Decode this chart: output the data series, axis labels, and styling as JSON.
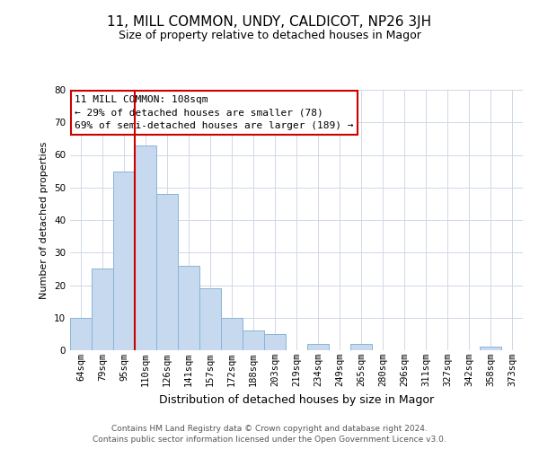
{
  "title": "11, MILL COMMON, UNDY, CALDICOT, NP26 3JH",
  "subtitle": "Size of property relative to detached houses in Magor",
  "xlabel": "Distribution of detached houses by size in Magor",
  "ylabel": "Number of detached properties",
  "categories": [
    "64sqm",
    "79sqm",
    "95sqm",
    "110sqm",
    "126sqm",
    "141sqm",
    "157sqm",
    "172sqm",
    "188sqm",
    "203sqm",
    "219sqm",
    "234sqm",
    "249sqm",
    "265sqm",
    "280sqm",
    "296sqm",
    "311sqm",
    "327sqm",
    "342sqm",
    "358sqm",
    "373sqm"
  ],
  "values": [
    10,
    25,
    55,
    63,
    48,
    26,
    19,
    10,
    6,
    5,
    0,
    2,
    0,
    2,
    0,
    0,
    0,
    0,
    0,
    1,
    0
  ],
  "bar_color": "#c6d9ee",
  "bar_edge_color": "#8ab4d8",
  "vline_color": "#cc0000",
  "vline_x_index": 3,
  "ylim": [
    0,
    80
  ],
  "yticks": [
    0,
    10,
    20,
    30,
    40,
    50,
    60,
    70,
    80
  ],
  "annotation_title": "11 MILL COMMON: 108sqm",
  "annotation_line2": "← 29% of detached houses are smaller (78)",
  "annotation_line3": "69% of semi-detached houses are larger (189) →",
  "annotation_box_edge": "#cc0000",
  "footer_line1": "Contains HM Land Registry data © Crown copyright and database right 2024.",
  "footer_line2": "Contains public sector information licensed under the Open Government Licence v3.0.",
  "background_color": "#ffffff",
  "grid_color": "#d0d8e8",
  "title_fontsize": 11,
  "subtitle_fontsize": 9,
  "xlabel_fontsize": 9,
  "ylabel_fontsize": 8,
  "tick_fontsize": 7.5,
  "annotation_fontsize": 8,
  "footer_fontsize": 6.5
}
